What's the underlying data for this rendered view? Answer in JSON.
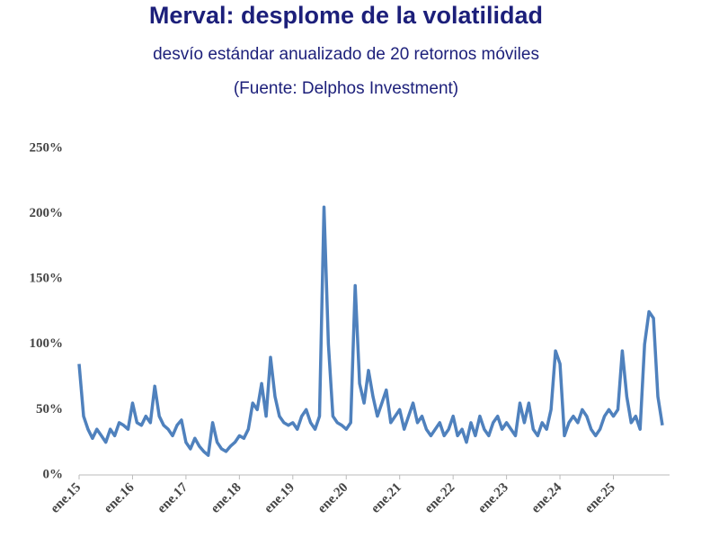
{
  "chart_data": {
    "type": "line",
    "title": "Merval: desplome de la volatilidad",
    "subtitle": "desvío estándar anualizado de 20 retornos móviles",
    "source": "(Fuente: Delphos Investment)",
    "categories": [
      "ene.15",
      null,
      null,
      null,
      null,
      null,
      null,
      null,
      null,
      null,
      null,
      null,
      "ene.16",
      null,
      null,
      null,
      null,
      null,
      null,
      null,
      null,
      null,
      null,
      null,
      "ene.17",
      null,
      null,
      null,
      null,
      null,
      null,
      null,
      null,
      null,
      null,
      null,
      "ene.18",
      null,
      null,
      null,
      null,
      null,
      null,
      null,
      null,
      null,
      null,
      null,
      "ene.19",
      null,
      null,
      null,
      null,
      null,
      null,
      null,
      null,
      null,
      null,
      null,
      "ene.20",
      null,
      null,
      null,
      null,
      null,
      null,
      null,
      null,
      null,
      null,
      null,
      "ene.21",
      null,
      null,
      null,
      null,
      null,
      null,
      null,
      null,
      null,
      null,
      null,
      "ene.22",
      null,
      null,
      null,
      null,
      null,
      null,
      null,
      null,
      null,
      null,
      null,
      "ene.23",
      null,
      null,
      null,
      null,
      null,
      null,
      null,
      null,
      null,
      null,
      null,
      "ene.24",
      null,
      null,
      null,
      null,
      null,
      null,
      null,
      null,
      null,
      null,
      null,
      "ene.25",
      null,
      null,
      null,
      null,
      null,
      null,
      null,
      null,
      null,
      null,
      null
    ],
    "series": [
      {
        "name": "Merval",
        "color": "#4f81bd",
        "values": [
          85,
          45,
          35,
          28,
          35,
          30,
          25,
          35,
          30,
          40,
          38,
          35,
          55,
          40,
          38,
          45,
          40,
          68,
          45,
          38,
          35,
          30,
          38,
          42,
          25,
          20,
          28,
          22,
          18,
          15,
          40,
          25,
          20,
          18,
          22,
          25,
          30,
          28,
          35,
          55,
          50,
          70,
          45,
          90,
          60,
          45,
          40,
          38,
          40,
          35,
          45,
          50,
          40,
          35,
          45,
          205,
          100,
          45,
          40,
          38,
          35,
          40,
          145,
          70,
          55,
          80,
          60,
          45,
          55,
          65,
          40,
          45,
          50,
          35,
          45,
          55,
          40,
          45,
          35,
          30,
          35,
          40,
          30,
          35,
          45,
          30,
          35,
          25,
          40,
          30,
          45,
          35,
          30,
          40,
          45,
          35,
          40,
          35,
          30,
          55,
          40,
          55,
          35,
          30,
          40,
          35,
          50,
          95,
          85,
          30,
          40,
          45,
          40,
          50,
          45,
          35,
          30,
          35,
          45,
          50,
          45,
          50,
          95,
          60,
          40,
          45,
          35,
          100,
          125,
          120,
          60,
          38
        ]
      }
    ],
    "ylim": [
      0,
      250
    ],
    "yticks": [
      {
        "value": 0,
        "label": "0%"
      },
      {
        "value": 50,
        "label": "50%"
      },
      {
        "value": 100,
        "label": "100%"
      },
      {
        "value": 150,
        "label": "150%"
      },
      {
        "value": 200,
        "label": "200%"
      },
      {
        "value": 250,
        "label": "250%"
      }
    ]
  }
}
